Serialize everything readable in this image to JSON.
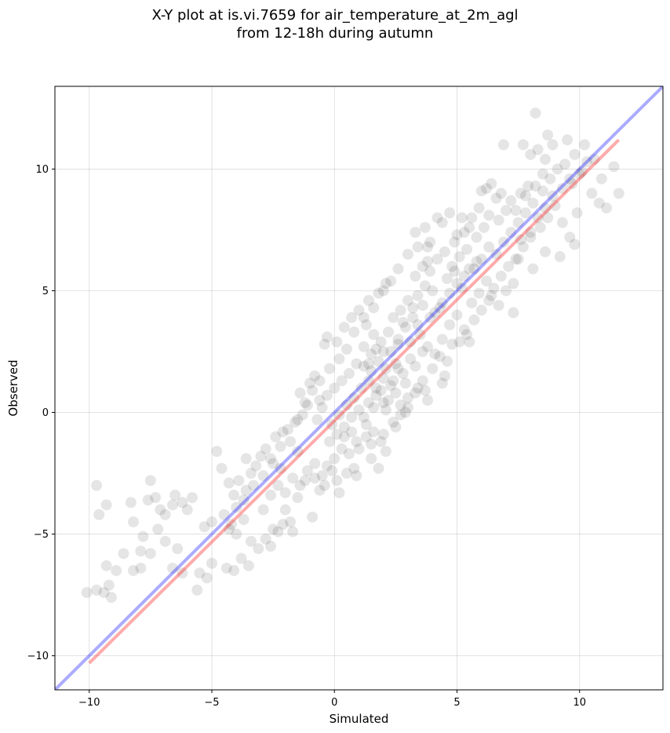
{
  "title": {
    "line1": "X-Y plot at is.vi.7659 for air_temperature_at_2m_agl",
    "line2": "from 12-18h during autumn"
  },
  "chart_data": {
    "type": "scatter",
    "xlabel": "Simulated",
    "ylabel": "Observed",
    "xlim": [
      -11.4,
      13.4
    ],
    "ylim": [
      -11.4,
      13.4
    ],
    "xticks": [
      -10,
      -5,
      0,
      5,
      10
    ],
    "yticks": [
      -10,
      -5,
      0,
      5,
      10
    ],
    "xtick_labels": [
      "−10",
      "−5",
      "0",
      "5",
      "10"
    ],
    "ytick_labels": [
      "−10",
      "−5",
      "0",
      "5",
      "10"
    ],
    "grid": true,
    "colors": {
      "points": "#000000",
      "identity_line": "#0000ff",
      "fit_line": "#ff0000"
    },
    "lines": [
      {
        "role": "identity",
        "color": "#0000ff",
        "x": [
          -11.4,
          13.4
        ],
        "y": [
          -11.4,
          13.4
        ]
      },
      {
        "role": "fit",
        "color": "#ff0000",
        "x": [
          -10.0,
          11.6
        ],
        "y": [
          -10.3,
          11.2
        ]
      }
    ],
    "points": [
      [
        -10.1,
        -7.4
      ],
      [
        -9.7,
        -7.3
      ],
      [
        -9.4,
        -7.4
      ],
      [
        -9.2,
        -7.1
      ],
      [
        -9.1,
        -7.6
      ],
      [
        -9.3,
        -6.3
      ],
      [
        -8.9,
        -6.5
      ],
      [
        -8.6,
        -5.8
      ],
      [
        -9.6,
        -4.2
      ],
      [
        -9.3,
        -3.8
      ],
      [
        -9.7,
        -3.0
      ],
      [
        -8.3,
        -3.7
      ],
      [
        -8.2,
        -4.5
      ],
      [
        -7.8,
        -5.1
      ],
      [
        -7.5,
        -2.8
      ],
      [
        -7.6,
        -3.6
      ],
      [
        -7.3,
        -3.5
      ],
      [
        -7.1,
        -4.0
      ],
      [
        -6.9,
        -4.2
      ],
      [
        -6.6,
        -3.8
      ],
      [
        -6.5,
        -3.4
      ],
      [
        -6.2,
        -3.7
      ],
      [
        -6.0,
        -4.0
      ],
      [
        -5.8,
        -3.5
      ],
      [
        -7.2,
        -4.8
      ],
      [
        -6.9,
        -5.3
      ],
      [
        -6.4,
        -5.6
      ],
      [
        -7.9,
        -5.7
      ],
      [
        -7.5,
        -5.8
      ],
      [
        -8.2,
        -6.5
      ],
      [
        -7.9,
        -6.4
      ],
      [
        -6.6,
        -6.4
      ],
      [
        -6.2,
        -6.6
      ],
      [
        -5.5,
        -6.6
      ],
      [
        -5.2,
        -6.8
      ],
      [
        -5.6,
        -7.3
      ],
      [
        -5.0,
        -6.2
      ],
      [
        -5.3,
        -4.7
      ],
      [
        -5.0,
        -4.5
      ],
      [
        -4.8,
        -1.6
      ],
      [
        -4.6,
        -2.3
      ],
      [
        -4.3,
        -2.9
      ],
      [
        -4.1,
        -3.4
      ],
      [
        -3.9,
        -2.8
      ],
      [
        -3.6,
        -3.2
      ],
      [
        -3.4,
        -2.5
      ],
      [
        -3.2,
        -2.2
      ],
      [
        -3.6,
        -1.9
      ],
      [
        -3.0,
        -1.8
      ],
      [
        -2.8,
        -1.5
      ],
      [
        -2.5,
        -2.1
      ],
      [
        -2.2,
        -2.3
      ],
      [
        -2.4,
        -1.0
      ],
      [
        -2.1,
        -0.8
      ],
      [
        -1.8,
        -1.2
      ],
      [
        -1.5,
        -1.6
      ],
      [
        -1.6,
        -0.4
      ],
      [
        -1.3,
        -0.1
      ],
      [
        -1.1,
        0.3
      ],
      [
        -1.4,
        0.8
      ],
      [
        -1.0,
        1.2
      ],
      [
        -0.8,
        1.5
      ],
      [
        -0.6,
        0.5
      ],
      [
        -0.4,
        2.8
      ],
      [
        -4.5,
        -4.2
      ],
      [
        -4.2,
        -4.6
      ],
      [
        -4.0,
        -5.0
      ],
      [
        -3.7,
        -4.4
      ],
      [
        -3.4,
        -5.3
      ],
      [
        -3.1,
        -5.6
      ],
      [
        -2.8,
        -5.2
      ],
      [
        -2.5,
        -4.8
      ],
      [
        -2.3,
        -4.9
      ],
      [
        -2.1,
        -4.6
      ],
      [
        -1.8,
        -4.5
      ],
      [
        -4.4,
        -6.4
      ],
      [
        -4.1,
        -6.5
      ],
      [
        -3.8,
        -6.0
      ],
      [
        -3.5,
        -6.3
      ],
      [
        -2.9,
        -4.0
      ],
      [
        -2.6,
        -3.4
      ],
      [
        -2.3,
        -3.0
      ],
      [
        -2.0,
        -3.3
      ],
      [
        -1.7,
        -2.7
      ],
      [
        -1.4,
        -3.0
      ],
      [
        -1.1,
        -2.4
      ],
      [
        -0.8,
        -2.1
      ],
      [
        -0.5,
        -2.6
      ],
      [
        -0.3,
        -2.2
      ],
      [
        0.0,
        -1.9
      ],
      [
        0.3,
        -1.5
      ],
      [
        0.5,
        -2.5
      ],
      [
        0.8,
        -2.3
      ],
      [
        -0.6,
        -3.2
      ],
      [
        0.2,
        -3.3
      ],
      [
        -0.9,
        -4.3
      ],
      [
        -0.2,
        -1.2
      ],
      [
        0.1,
        -0.9
      ],
      [
        0.4,
        -0.6
      ],
      [
        0.7,
        -0.2
      ],
      [
        1.0,
        0.1
      ],
      [
        1.3,
        -0.5
      ],
      [
        1.6,
        -0.8
      ],
      [
        1.9,
        -1.2
      ],
      [
        0.2,
        -0.1
      ],
      [
        0.5,
        0.3
      ],
      [
        0.8,
        0.6
      ],
      [
        1.1,
        1.0
      ],
      [
        1.4,
        1.3
      ],
      [
        1.7,
        0.7
      ],
      [
        2.0,
        0.4
      ],
      [
        2.3,
        1.1
      ],
      [
        2.1,
        1.8
      ],
      [
        1.8,
        2.1
      ],
      [
        1.5,
        2.4
      ],
      [
        1.2,
        2.7
      ],
      [
        1.6,
        3.2
      ],
      [
        1.3,
        3.6
      ],
      [
        1.9,
        2.9
      ],
      [
        2.2,
        3.3
      ],
      [
        2.5,
        2.0
      ],
      [
        2.8,
        1.6
      ],
      [
        3.1,
        2.2
      ],
      [
        2.6,
        2.8
      ],
      [
        2.9,
        3.5
      ],
      [
        3.2,
        3.9
      ],
      [
        2.7,
        4.2
      ],
      [
        3.0,
        4.6
      ],
      [
        3.4,
        4.8
      ],
      [
        3.7,
        5.2
      ],
      [
        3.3,
        5.6
      ],
      [
        3.6,
        6.0
      ],
      [
        3.9,
        5.8
      ],
      [
        4.2,
        6.3
      ],
      [
        3.8,
        6.8
      ],
      [
        4.5,
        6.6
      ],
      [
        4.1,
        4.1
      ],
      [
        4.4,
        4.5
      ],
      [
        4.7,
        4.9
      ],
      [
        5.0,
        5.3
      ],
      [
        5.3,
        5.6
      ],
      [
        4.8,
        6.0
      ],
      [
        5.1,
        6.4
      ],
      [
        5.4,
        6.7
      ],
      [
        3.5,
        3.2
      ],
      [
        3.8,
        2.7
      ],
      [
        4.1,
        2.4
      ],
      [
        4.4,
        3.0
      ],
      [
        4.7,
        3.6
      ],
      [
        5.0,
        4.0
      ],
      [
        5.3,
        3.4
      ],
      [
        4.6,
        2.1
      ],
      [
        5.6,
        4.5
      ],
      [
        5.9,
        4.9
      ],
      [
        6.2,
        5.4
      ],
      [
        5.7,
        5.9
      ],
      [
        6.0,
        6.3
      ],
      [
        6.3,
        6.8
      ],
      [
        5.8,
        7.2
      ],
      [
        6.1,
        7.6
      ],
      [
        6.5,
        5.1
      ],
      [
        6.8,
        5.6
      ],
      [
        7.1,
        6.0
      ],
      [
        6.6,
        6.5
      ],
      [
        6.9,
        7.0
      ],
      [
        7.2,
        7.4
      ],
      [
        6.7,
        7.9
      ],
      [
        7.0,
        8.3
      ],
      [
        7.4,
        6.3
      ],
      [
        7.7,
        6.8
      ],
      [
        8.0,
        7.2
      ],
      [
        7.5,
        7.8
      ],
      [
        7.8,
        8.2
      ],
      [
        8.1,
        8.6
      ],
      [
        7.6,
        9.0
      ],
      [
        7.9,
        9.3
      ],
      [
        8.4,
        7.6
      ],
      [
        8.7,
        8.0
      ],
      [
        9.0,
        8.5
      ],
      [
        8.5,
        9.1
      ],
      [
        8.8,
        9.6
      ],
      [
        9.1,
        10.0
      ],
      [
        8.6,
        10.4
      ],
      [
        9.4,
        10.2
      ],
      [
        9.7,
        9.4
      ],
      [
        10.0,
        9.8
      ],
      [
        10.3,
        10.3
      ],
      [
        9.8,
        10.6
      ],
      [
        10.2,
        11.0
      ],
      [
        9.5,
        11.2
      ],
      [
        8.9,
        11.0
      ],
      [
        8.3,
        10.8
      ],
      [
        10.5,
        9.0
      ],
      [
        10.8,
        8.6
      ],
      [
        11.1,
        8.4
      ],
      [
        11.6,
        9.0
      ],
      [
        11.4,
        10.1
      ],
      [
        10.9,
        9.6
      ],
      [
        10.6,
        10.4
      ],
      [
        9.9,
        8.2
      ],
      [
        8.2,
        12.3
      ],
      [
        8.7,
        11.4
      ],
      [
        7.7,
        11.0
      ],
      [
        6.9,
        11.0
      ],
      [
        8.0,
        10.6
      ],
      [
        9.3,
        7.8
      ],
      [
        9.6,
        7.2
      ],
      [
        9.8,
        6.9
      ],
      [
        8.1,
        5.9
      ],
      [
        7.3,
        4.1
      ],
      [
        9.2,
        6.4
      ],
      [
        8.6,
        6.6
      ],
      [
        7.5,
        6.3
      ],
      [
        6.4,
        4.8
      ],
      [
        5.5,
        2.9
      ],
      [
        4.5,
        1.5
      ],
      [
        3.7,
        0.9
      ],
      [
        3.0,
        0.6
      ],
      [
        2.5,
        0.8
      ],
      [
        2.2,
        0.5
      ],
      [
        1.9,
        0.9
      ],
      [
        2.4,
        1.3
      ],
      [
        2.0,
        1.4
      ],
      [
        1.7,
        1.0
      ],
      [
        2.7,
        0.3
      ],
      [
        2.9,
        1.2
      ],
      [
        3.3,
        1.9
      ],
      [
        3.6,
        2.5
      ],
      [
        2.3,
        2.5
      ],
      [
        2.6,
        3.0
      ],
      [
        1.5,
        1.7
      ],
      [
        1.2,
        1.9
      ],
      [
        0.9,
        2.0
      ],
      [
        0.6,
        1.6
      ],
      [
        0.3,
        1.3
      ],
      [
        0.0,
        1.0
      ],
      [
        -0.3,
        0.7
      ],
      [
        -0.5,
        0.2
      ],
      [
        -0.7,
        -0.3
      ],
      [
        -0.1,
        -0.5
      ],
      [
        0.4,
        -1.0
      ],
      [
        0.9,
        -1.2
      ],
      [
        1.2,
        -0.2
      ],
      [
        1.4,
        0.4
      ],
      [
        1.6,
        0.2
      ],
      [
        2.1,
        0.1
      ],
      [
        2.6,
        1.8
      ],
      [
        3.1,
        2.9
      ],
      [
        3.4,
        3.6
      ],
      [
        3.9,
        3.9
      ],
      [
        4.3,
        4.3
      ],
      [
        4.6,
        5.5
      ],
      [
        4.9,
        5.8
      ],
      [
        5.2,
        5.1
      ],
      [
        5.5,
        5.9
      ],
      [
        5.8,
        6.2
      ],
      [
        4.0,
        5.0
      ],
      [
        3.6,
        4.4
      ],
      [
        3.2,
        4.3
      ],
      [
        2.8,
        3.7
      ],
      [
        2.4,
        3.9
      ],
      [
        2.0,
        2.5
      ],
      [
        1.7,
        2.6
      ],
      [
        1.4,
        2.0
      ],
      [
        6.3,
        8.1
      ],
      [
        6.6,
        8.8
      ],
      [
        6.2,
        9.2
      ],
      [
        5.9,
        8.4
      ],
      [
        5.6,
        8.0
      ],
      [
        5.3,
        7.4
      ],
      [
        4.9,
        7.0
      ],
      [
        4.4,
        7.8
      ],
      [
        3.9,
        7.0
      ],
      [
        3.4,
        6.8
      ],
      [
        3.0,
        6.5
      ],
      [
        2.6,
        5.9
      ],
      [
        2.3,
        5.4
      ],
      [
        2.0,
        5.0
      ],
      [
        1.6,
        4.3
      ],
      [
        1.2,
        3.9
      ],
      [
        0.8,
        3.3
      ],
      [
        0.5,
        2.6
      ],
      [
        0.2,
        2.2
      ],
      [
        -0.2,
        1.8
      ],
      [
        -0.6,
        1.3
      ],
      [
        -0.9,
        0.9
      ],
      [
        -1.2,
        0.4
      ],
      [
        -1.5,
        -0.3
      ],
      [
        -1.9,
        -0.7
      ],
      [
        -2.2,
        -1.4
      ],
      [
        -2.6,
        -1.9
      ],
      [
        -2.9,
        -2.6
      ],
      [
        -3.3,
        -3.0
      ],
      [
        -3.7,
        -3.6
      ],
      [
        -4.0,
        -3.9
      ],
      [
        -4.3,
        -4.8
      ],
      [
        -1.2,
        -2.8
      ],
      [
        -0.8,
        -2.7
      ],
      [
        -0.4,
        -3.0
      ],
      [
        0.1,
        -2.8
      ],
      [
        -1.5,
        -3.5
      ],
      [
        -2.0,
        -4.0
      ],
      [
        -1.7,
        -4.9
      ],
      [
        -2.6,
        -5.5
      ],
      [
        1.0,
        -1.5
      ],
      [
        1.5,
        -1.9
      ],
      [
        1.8,
        -2.3
      ],
      [
        2.1,
        -1.6
      ],
      [
        1.3,
        -1.0
      ],
      [
        0.6,
        -1.7
      ],
      [
        0.9,
        -2.6
      ],
      [
        -0.1,
        -2.4
      ],
      [
        2.4,
        -0.4
      ],
      [
        2.7,
        -0.1
      ],
      [
        3.0,
        0.2
      ],
      [
        3.3,
        0.8
      ],
      [
        3.6,
        1.3
      ],
      [
        4.0,
        1.8
      ],
      [
        4.3,
        2.3
      ],
      [
        4.8,
        2.8
      ],
      [
        5.1,
        2.9
      ],
      [
        5.4,
        3.2
      ],
      [
        5.7,
        3.8
      ],
      [
        6.0,
        4.2
      ],
      [
        6.3,
        4.6
      ],
      [
        6.7,
        4.4
      ],
      [
        7.0,
        5.0
      ],
      [
        7.3,
        5.3
      ],
      [
        5.0,
        7.3
      ],
      [
        5.5,
        7.6
      ],
      [
        5.2,
        8.0
      ],
      [
        4.7,
        8.2
      ],
      [
        4.2,
        8.0
      ],
      [
        3.7,
        7.6
      ],
      [
        3.3,
        7.4
      ],
      [
        3.8,
        6.2
      ],
      [
        7.6,
        7.1
      ],
      [
        8.0,
        7.4
      ],
      [
        8.3,
        8.0
      ],
      [
        8.6,
        8.4
      ],
      [
        8.9,
        8.9
      ],
      [
        9.3,
        9.2
      ],
      [
        9.6,
        9.6
      ],
      [
        10.1,
        9.9
      ],
      [
        6.0,
        9.1
      ],
      [
        6.4,
        9.4
      ],
      [
        6.8,
        9.0
      ],
      [
        7.2,
        8.7
      ],
      [
        7.4,
        8.3
      ],
      [
        7.8,
        8.9
      ],
      [
        8.2,
        9.3
      ],
      [
        8.5,
        9.8
      ],
      [
        -0.3,
        3.1
      ],
      [
        0.1,
        2.9
      ],
      [
        0.4,
        3.5
      ],
      [
        0.7,
        3.9
      ],
      [
        1.0,
        4.2
      ],
      [
        1.4,
        4.6
      ],
      [
        1.8,
        4.9
      ],
      [
        2.1,
        5.3
      ],
      [
        4.4,
        1.2
      ],
      [
        3.8,
        0.5
      ],
      [
        3.4,
        1.0
      ],
      [
        2.9,
        0.0
      ],
      [
        2.5,
        -0.6
      ],
      [
        2.0,
        -0.9
      ],
      [
        1.5,
        -1.3
      ],
      [
        0.7,
        -0.8
      ]
    ]
  }
}
